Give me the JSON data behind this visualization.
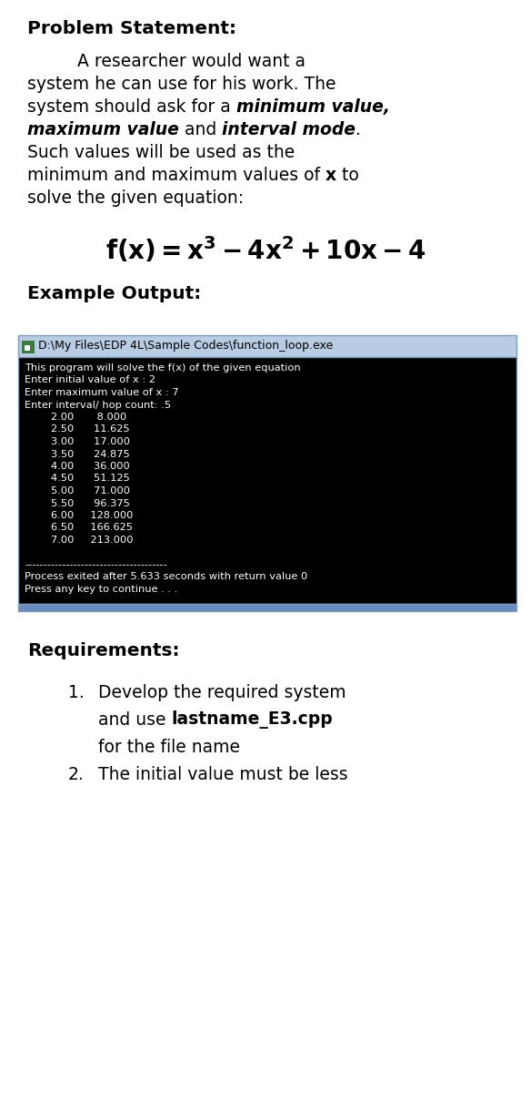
{
  "bg_color": "#ffffff",
  "title": "Problem Statement:",
  "example_output_label": "Example Output:",
  "requirements_label": "Requirements:",
  "console_title": "D:\\My Files\\EDP 4L\\Sample Codes\\function_loop.exe",
  "console_bg": "#000000",
  "console_title_bg": "#b8cce4",
  "console_text_color": "#ffffff",
  "console_lines": [
    "This program will solve the f(x) of the given equation",
    "Enter initial value of x : 2",
    "Enter maximum value of x : 7",
    "Enter interval/ hop count: .5",
    "        2.00       8.000",
    "        2.50      11.625",
    "        3.00      17.000",
    "        3.50      24.875",
    "        4.00      36.000",
    "        4.50      51.125",
    "        5.00      71.000",
    "        5.50      96.375",
    "        6.00     128.000",
    "        6.50     166.625",
    "        7.00     213.000",
    "",
    "--------------------------------------",
    "Process exited after 5.633 seconds with return value 0",
    "Press any key to continue . . ."
  ],
  "req1_line1": "Develop the required system",
  "req1_prefix": "and use ",
  "req1_bold": "lastname_E3.cpp",
  "req1_line3": "for the file name",
  "req2": "The initial value must be less",
  "font_size_title": 14.5,
  "font_size_body": 13.5,
  "font_size_equation": 20,
  "font_size_console": 8.2,
  "font_size_console_title": 9.0
}
